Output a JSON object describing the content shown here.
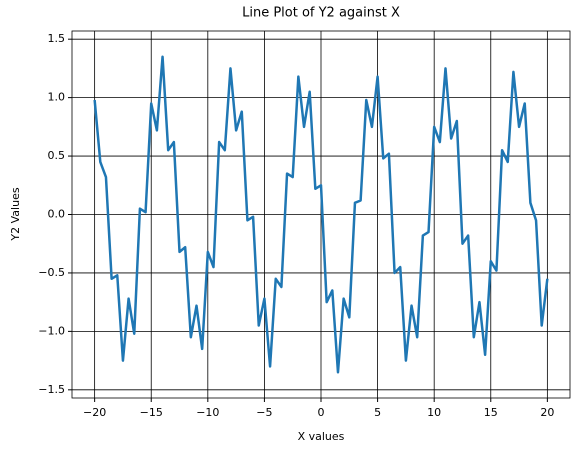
{
  "chart_data": {
    "type": "line",
    "title": "Line Plot of Y2 against X",
    "x_label": "X values",
    "y_label": "Y2 Values",
    "x": [
      -20,
      -19.5,
      -19,
      -18.5,
      -18,
      -17.5,
      -17,
      -16.5,
      -16,
      -15.5,
      -15,
      -14.5,
      -14,
      -13.5,
      -13,
      -12.5,
      -12,
      -11.5,
      -11,
      -10.5,
      -10,
      -9.5,
      -9,
      -8.5,
      -8,
      -7.5,
      -7,
      -6.5,
      -6,
      -5.5,
      -5,
      -4.5,
      -4,
      -3.5,
      -3,
      -2.5,
      -2,
      -1.5,
      -1,
      -0.5,
      0,
      0.5,
      1,
      1.5,
      2,
      2.5,
      3,
      3.5,
      4,
      4.5,
      5,
      5.5,
      6,
      6.5,
      7,
      7.5,
      8,
      8.5,
      9,
      9.5,
      10,
      10.5,
      11,
      11.5,
      12,
      12.5,
      13,
      13.5,
      14,
      14.5,
      15,
      15.5,
      16,
      16.5,
      17,
      17.5,
      18,
      18.5,
      19,
      19.5,
      20
    ],
    "series": [
      {
        "name": "Y2",
        "color": "#1f77b4",
        "values": [
          0.98,
          0.45,
          0.32,
          -0.55,
          -0.52,
          -1.25,
          -0.72,
          -1.02,
          0.05,
          0.02,
          0.95,
          0.72,
          1.35,
          0.55,
          0.62,
          -0.32,
          -0.28,
          -1.05,
          -0.78,
          -1.15,
          -0.32,
          -0.45,
          0.62,
          0.55,
          1.25,
          0.72,
          0.88,
          -0.05,
          -0.02,
          -0.95,
          -0.72,
          -1.3,
          -0.55,
          -0.62,
          0.35,
          0.32,
          1.18,
          0.75,
          1.05,
          0.22,
          0.25,
          -0.75,
          -0.65,
          -1.35,
          -0.72,
          -0.88,
          0.1,
          0.12,
          0.98,
          0.75,
          1.18,
          0.48,
          0.52,
          -0.5,
          -0.45,
          -1.25,
          -0.78,
          -1.05,
          -0.18,
          -0.15,
          0.75,
          0.62,
          1.25,
          0.65,
          0.8,
          -0.25,
          -0.18,
          -1.05,
          -0.75,
          -1.2,
          -0.4,
          -0.48,
          0.55,
          0.45,
          1.22,
          0.75,
          0.95,
          0.1,
          -0.05,
          -0.95,
          -0.55
        ]
      }
    ],
    "xlim": [
      -22,
      22
    ],
    "ylim": [
      -1.57,
      1.57
    ],
    "xticks": [
      {
        "value": -20,
        "label": "−20"
      },
      {
        "value": -15,
        "label": "−15"
      },
      {
        "value": -10,
        "label": "−10"
      },
      {
        "value": -5,
        "label": "−5"
      },
      0,
      5,
      10,
      15,
      20
    ],
    "yticks": [
      {
        "value": -1.5,
        "label": "−1.5"
      },
      {
        "value": -1,
        "label": "−1.0"
      },
      {
        "value": -0.5,
        "label": "−0.5"
      },
      {
        "value": 0,
        "label": "0.0"
      },
      0.5,
      {
        "value": 1,
        "label": "1.0"
      },
      1.5
    ],
    "grid": true
  }
}
